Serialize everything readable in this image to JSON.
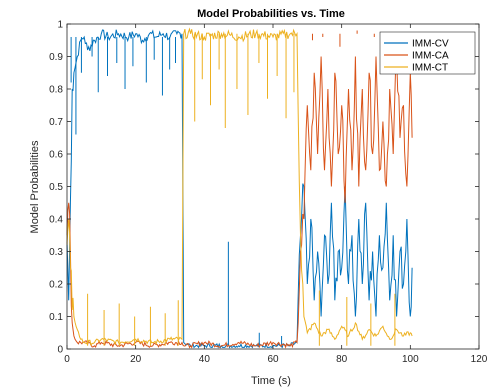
{
  "chart_data": {
    "type": "line",
    "title": "Model Probabilities vs. Time",
    "xlabel": "Time (s)",
    "ylabel": "Model Probabilities",
    "xlim": [
      0,
      120
    ],
    "ylim": [
      0,
      1
    ],
    "xticks": [
      "0",
      "20",
      "40",
      "60",
      "80",
      "100",
      "120"
    ],
    "yticks": [
      "0",
      "0.1",
      "0.2",
      "0.3",
      "0.4",
      "0.5",
      "0.6",
      "0.7",
      "0.8",
      "0.9",
      "1"
    ],
    "grid": false,
    "legend_position": "top-right",
    "series": [
      {
        "name": "IMM-CV",
        "color": "#0072BD",
        "points": [
          [
            0,
            0.33
          ],
          [
            0.5,
            0.15
          ],
          [
            1,
            0.45
          ],
          [
            1.5,
            0.8
          ],
          [
            2,
            0.85
          ],
          [
            3,
            0.9
          ],
          [
            4,
            0.95
          ],
          [
            5,
            0.96
          ],
          [
            6,
            0.92
          ],
          [
            8,
            0.95
          ],
          [
            10,
            0.97
          ],
          [
            12,
            0.96
          ],
          [
            15,
            0.97
          ],
          [
            18,
            0.96
          ],
          [
            20,
            0.97
          ],
          [
            22,
            0.95
          ],
          [
            24,
            0.97
          ],
          [
            26,
            0.96
          ],
          [
            28,
            0.97
          ],
          [
            30,
            0.96
          ],
          [
            32,
            0.97
          ],
          [
            33.5,
            0.97
          ],
          [
            34,
            0.02
          ],
          [
            36,
            0.01
          ],
          [
            40,
            0.01
          ],
          [
            45,
            0.01
          ],
          [
            50,
            0.01
          ],
          [
            55,
            0.01
          ],
          [
            60,
            0.01
          ],
          [
            65,
            0.01
          ],
          [
            67,
            0.02
          ],
          [
            68,
            0.35
          ],
          [
            69,
            0.5
          ],
          [
            70,
            0.2
          ],
          [
            71,
            0.4
          ],
          [
            72,
            0.15
          ],
          [
            73,
            0.3
          ],
          [
            74,
            0.1
          ],
          [
            75,
            0.35
          ],
          [
            76,
            0.2
          ],
          [
            77,
            0.45
          ],
          [
            78,
            0.15
          ],
          [
            79,
            0.3
          ],
          [
            80,
            0.25
          ],
          [
            81,
            0.5
          ],
          [
            82,
            0.2
          ],
          [
            83,
            0.35
          ],
          [
            84,
            0.1
          ],
          [
            85,
            0.4
          ],
          [
            86,
            0.2
          ],
          [
            87,
            0.45
          ],
          [
            88,
            0.15
          ],
          [
            89,
            0.3
          ],
          [
            90,
            0.1
          ],
          [
            91,
            0.35
          ],
          [
            92,
            0.25
          ],
          [
            93,
            0.45
          ],
          [
            94,
            0.15
          ],
          [
            95,
            0.35
          ],
          [
            96,
            0.1
          ],
          [
            97,
            0.3
          ],
          [
            98,
            0.2
          ],
          [
            99,
            0.4
          ],
          [
            100,
            0.1
          ],
          [
            100.5,
            0.25
          ]
        ],
        "spikes": [
          [
            1.2,
            0.82
          ],
          [
            2.6,
            0.66
          ],
          [
            4.2,
            0.85
          ],
          [
            7.3,
            0.9
          ],
          [
            9.1,
            0.79
          ],
          [
            11.8,
            0.84
          ],
          [
            14.5,
            0.88
          ],
          [
            16.9,
            0.8
          ],
          [
            19.2,
            0.87
          ],
          [
            23.1,
            0.82
          ],
          [
            25.4,
            0.89
          ],
          [
            27.8,
            0.78
          ],
          [
            29.9,
            0.86
          ],
          [
            31.6,
            0.88
          ],
          [
            47.0,
            0.33
          ],
          [
            56.0,
            0.05
          ],
          [
            62.5,
            0.04
          ]
        ]
      },
      {
        "name": "IMM-CA",
        "color": "#D95319",
        "points": [
          [
            0,
            0.35
          ],
          [
            0.5,
            0.45
          ],
          [
            1,
            0.3
          ],
          [
            1.5,
            0.08
          ],
          [
            2,
            0.04
          ],
          [
            3,
            0.02
          ],
          [
            5,
            0.02
          ],
          [
            8,
            0.01
          ],
          [
            10,
            0.02
          ],
          [
            15,
            0.01
          ],
          [
            20,
            0.02
          ],
          [
            25,
            0.01
          ],
          [
            30,
            0.02
          ],
          [
            33.5,
            0.02
          ],
          [
            34,
            0.01
          ],
          [
            36,
            0.01
          ],
          [
            40,
            0.02
          ],
          [
            45,
            0.01
          ],
          [
            50,
            0.02
          ],
          [
            55,
            0.01
          ],
          [
            60,
            0.02
          ],
          [
            65,
            0.01
          ],
          [
            67,
            0.02
          ],
          [
            68,
            0.3
          ],
          [
            69,
            0.4
          ],
          [
            70,
            0.75
          ],
          [
            71,
            0.55
          ],
          [
            72,
            0.85
          ],
          [
            73,
            0.6
          ],
          [
            74,
            0.9
          ],
          [
            75,
            0.55
          ],
          [
            76,
            0.8
          ],
          [
            77,
            0.5
          ],
          [
            78,
            0.85
          ],
          [
            79,
            0.6
          ],
          [
            80,
            0.75
          ],
          [
            81,
            0.45
          ],
          [
            82,
            0.8
          ],
          [
            83,
            0.55
          ],
          [
            84,
            0.9
          ],
          [
            85,
            0.5
          ],
          [
            86,
            0.8
          ],
          [
            87,
            0.55
          ],
          [
            88,
            0.85
          ],
          [
            89,
            0.6
          ],
          [
            90,
            0.9
          ],
          [
            91,
            0.55
          ],
          [
            92,
            0.7
          ],
          [
            93,
            0.5
          ],
          [
            94,
            0.8
          ],
          [
            95,
            0.6
          ],
          [
            96,
            0.9
          ],
          [
            97,
            0.65
          ],
          [
            98,
            0.75
          ],
          [
            99,
            0.5
          ],
          [
            100,
            0.85
          ],
          [
            100.5,
            0.65
          ]
        ],
        "spikes": [
          [
            71.5,
            0.95
          ],
          [
            74.5,
            0.96
          ],
          [
            79.5,
            0.93
          ],
          [
            84.5,
            0.98
          ],
          [
            89.5,
            0.96
          ],
          [
            93.5,
            0.95
          ],
          [
            97.5,
            0.97
          ]
        ]
      },
      {
        "name": "IMM-CT",
        "color": "#EDB120",
        "points": [
          [
            0,
            0.32
          ],
          [
            0.5,
            0.4
          ],
          [
            1,
            0.25
          ],
          [
            1.5,
            0.12
          ],
          [
            2,
            0.1
          ],
          [
            3,
            0.06
          ],
          [
            4,
            0.03
          ],
          [
            5,
            0.02
          ],
          [
            8,
            0.02
          ],
          [
            10,
            0.03
          ],
          [
            15,
            0.02
          ],
          [
            20,
            0.03
          ],
          [
            25,
            0.02
          ],
          [
            30,
            0.03
          ],
          [
            33.5,
            0.03
          ],
          [
            34,
            0.97
          ],
          [
            36,
            0.97
          ],
          [
            40,
            0.96
          ],
          [
            45,
            0.97
          ],
          [
            50,
            0.96
          ],
          [
            55,
            0.97
          ],
          [
            60,
            0.96
          ],
          [
            65,
            0.97
          ],
          [
            67,
            0.97
          ],
          [
            68,
            0.35
          ],
          [
            69,
            0.1
          ],
          [
            70,
            0.05
          ],
          [
            72,
            0.08
          ],
          [
            74,
            0.04
          ],
          [
            76,
            0.06
          ],
          [
            78,
            0.03
          ],
          [
            80,
            0.07
          ],
          [
            82,
            0.04
          ],
          [
            84,
            0.08
          ],
          [
            86,
            0.03
          ],
          [
            88,
            0.06
          ],
          [
            90,
            0.04
          ],
          [
            92,
            0.07
          ],
          [
            94,
            0.03
          ],
          [
            96,
            0.06
          ],
          [
            98,
            0.04
          ],
          [
            100,
            0.05
          ],
          [
            100.5,
            0.04
          ]
        ],
        "spikes": [
          [
            6.0,
            0.17
          ],
          [
            10.8,
            0.12
          ],
          [
            15.2,
            0.14
          ],
          [
            19.7,
            0.1
          ],
          [
            24.3,
            0.13
          ],
          [
            28.6,
            0.11
          ],
          [
            32.4,
            0.15
          ],
          [
            37.2,
            0.7
          ],
          [
            39.4,
            0.83
          ],
          [
            41.8,
            0.75
          ],
          [
            44.3,
            0.86
          ],
          [
            46.1,
            0.68
          ],
          [
            49.5,
            0.8
          ],
          [
            52.7,
            0.72
          ],
          [
            55.9,
            0.88
          ],
          [
            58.4,
            0.77
          ],
          [
            61.2,
            0.84
          ],
          [
            63.8,
            0.71
          ],
          [
            66.1,
            0.79
          ],
          [
            73.5,
            0.18
          ],
          [
            81.5,
            0.16
          ],
          [
            88.5,
            0.14
          ],
          [
            95.5,
            0.17
          ]
        ]
      }
    ]
  }
}
